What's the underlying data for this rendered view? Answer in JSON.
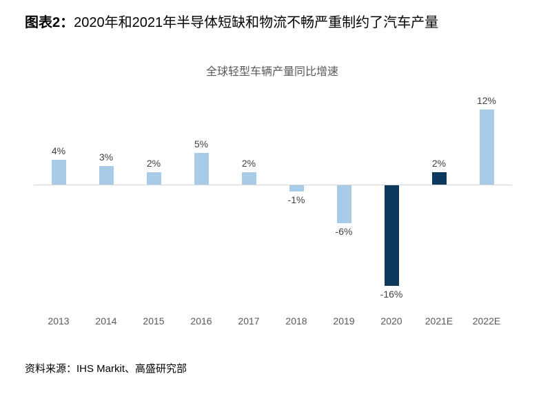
{
  "header": {
    "title_prefix": "图表2：",
    "title_rest": "2020年和2021年半导体短缺和物流不畅严重制约了汽车产量"
  },
  "chart_data": {
    "type": "bar",
    "title": "全球轻型车辆产量同比增速",
    "categories": [
      "2013",
      "2014",
      "2015",
      "2016",
      "2017",
      "2018",
      "2019",
      "2020",
      "2021E",
      "2022E"
    ],
    "values": [
      4,
      3,
      2,
      5,
      2,
      -1,
      -6,
      -16,
      2,
      12
    ],
    "labels": [
      "4%",
      "3%",
      "2%",
      "5%",
      "2%",
      "-1%",
      "-6%",
      "-16%",
      "2%",
      "12%"
    ],
    "ylim": [
      -18,
      14
    ],
    "grid": false,
    "legend": "none",
    "baseline": 0,
    "colors": {
      "default": "#a8cce8",
      "highlight": "#0d3a5c",
      "axis_line": "#d6d6d6",
      "tick_label": "#595959",
      "value_label": "#3f3f3f"
    },
    "highlight_indices": [
      7,
      8
    ]
  },
  "footer": {
    "source": "资料来源：IHS Markit、高盛研究部"
  }
}
